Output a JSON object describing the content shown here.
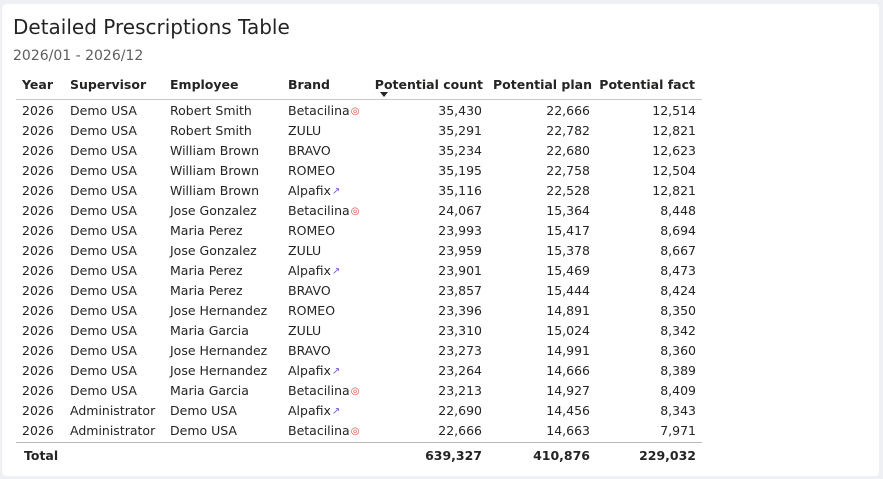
{
  "header": {
    "title": "Detailed Prescriptions Table",
    "date_range": "2026/01 - 2026/12"
  },
  "table": {
    "columns": {
      "year": "Year",
      "supervisor": "Supervisor",
      "employee": "Employee",
      "brand": "Brand",
      "potential_count": "Potential count",
      "potential_plan": "Potential plan",
      "potential_fact": "Potential fact"
    },
    "sorted_column": "Potential count",
    "sort_direction": "descending",
    "icons": {
      "Betacilina": "target-icon",
      "Alpafix": "rocket-icon"
    },
    "rows": [
      {
        "year": "2026",
        "supervisor": "Demo USA",
        "employee": "Robert Smith",
        "brand": "Betacilina",
        "icon": "target",
        "pc": "35,430",
        "pp": "22,666",
        "pf": "12,514"
      },
      {
        "year": "2026",
        "supervisor": "Demo USA",
        "employee": "Robert Smith",
        "brand": "ZULU",
        "icon": "",
        "pc": "35,291",
        "pp": "22,782",
        "pf": "12,821"
      },
      {
        "year": "2026",
        "supervisor": "Demo USA",
        "employee": "William Brown",
        "brand": "BRAVO",
        "icon": "",
        "pc": "35,234",
        "pp": "22,680",
        "pf": "12,623"
      },
      {
        "year": "2026",
        "supervisor": "Demo USA",
        "employee": "William Brown",
        "brand": "ROMEO",
        "icon": "",
        "pc": "35,195",
        "pp": "22,758",
        "pf": "12,504"
      },
      {
        "year": "2026",
        "supervisor": "Demo USA",
        "employee": "William Brown",
        "brand": "Alpafix",
        "icon": "rocket",
        "pc": "35,116",
        "pp": "22,528",
        "pf": "12,821"
      },
      {
        "year": "2026",
        "supervisor": "Demo USA",
        "employee": "Jose Gonzalez",
        "brand": "Betacilina",
        "icon": "target",
        "pc": "24,067",
        "pp": "15,364",
        "pf": "8,448"
      },
      {
        "year": "2026",
        "supervisor": "Demo USA",
        "employee": "Maria Perez",
        "brand": "ROMEO",
        "icon": "",
        "pc": "23,993",
        "pp": "15,417",
        "pf": "8,694"
      },
      {
        "year": "2026",
        "supervisor": "Demo USA",
        "employee": "Jose Gonzalez",
        "brand": "ZULU",
        "icon": "",
        "pc": "23,959",
        "pp": "15,378",
        "pf": "8,667"
      },
      {
        "year": "2026",
        "supervisor": "Demo USA",
        "employee": "Maria Perez",
        "brand": "Alpafix",
        "icon": "rocket",
        "pc": "23,901",
        "pp": "15,469",
        "pf": "8,473"
      },
      {
        "year": "2026",
        "supervisor": "Demo USA",
        "employee": "Maria Perez",
        "brand": "BRAVO",
        "icon": "",
        "pc": "23,857",
        "pp": "15,444",
        "pf": "8,424"
      },
      {
        "year": "2026",
        "supervisor": "Demo USA",
        "employee": "Jose Hernandez",
        "brand": "ROMEO",
        "icon": "",
        "pc": "23,396",
        "pp": "14,891",
        "pf": "8,350"
      },
      {
        "year": "2026",
        "supervisor": "Demo USA",
        "employee": "Maria Garcia",
        "brand": "ZULU",
        "icon": "",
        "pc": "23,310",
        "pp": "15,024",
        "pf": "8,342"
      },
      {
        "year": "2026",
        "supervisor": "Demo USA",
        "employee": "Jose Hernandez",
        "brand": "BRAVO",
        "icon": "",
        "pc": "23,273",
        "pp": "14,991",
        "pf": "8,360"
      },
      {
        "year": "2026",
        "supervisor": "Demo USA",
        "employee": "Jose Hernandez",
        "brand": "Alpafix",
        "icon": "rocket",
        "pc": "23,264",
        "pp": "14,666",
        "pf": "8,389"
      },
      {
        "year": "2026",
        "supervisor": "Demo USA",
        "employee": "Maria Garcia",
        "brand": "Betacilina",
        "icon": "target",
        "pc": "23,213",
        "pp": "14,927",
        "pf": "8,409"
      },
      {
        "year": "2026",
        "supervisor": "Administrator",
        "employee": "Demo USA",
        "brand": "Alpafix",
        "icon": "rocket",
        "pc": "22,690",
        "pp": "14,456",
        "pf": "8,343"
      },
      {
        "year": "2026",
        "supervisor": "Administrator",
        "employee": "Demo USA",
        "brand": "Betacilina",
        "icon": "target",
        "pc": "22,666",
        "pp": "14,663",
        "pf": "7,971"
      }
    ],
    "total": {
      "label": "Total",
      "pc": "639,327",
      "pp": "410,876",
      "pf": "229,032"
    }
  }
}
